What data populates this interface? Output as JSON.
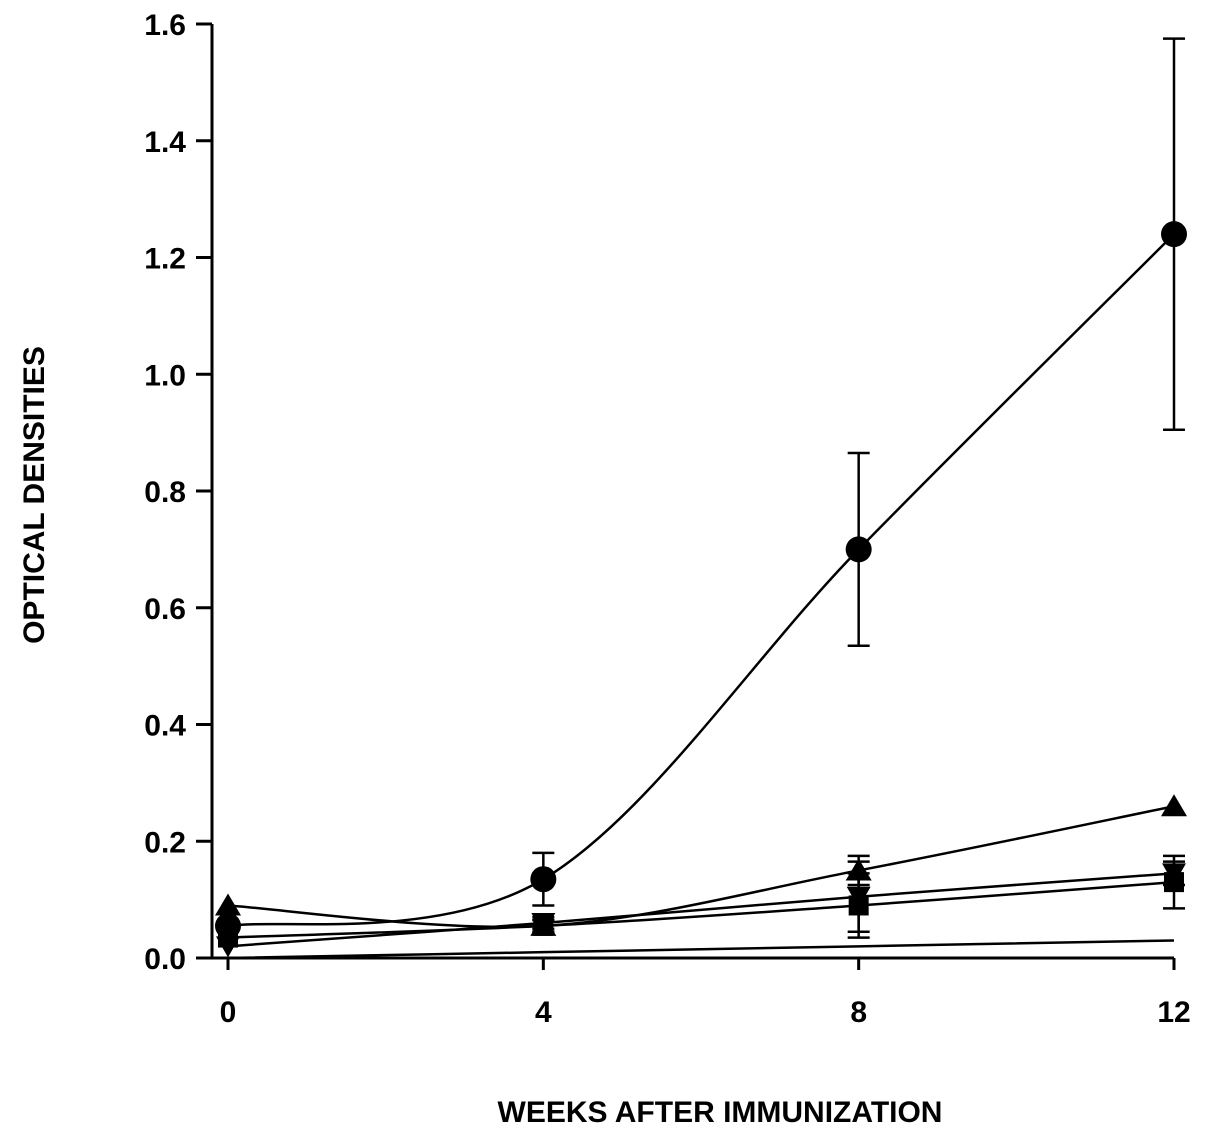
{
  "chart_data": {
    "type": "line",
    "title": "",
    "xlabel": "WEEKS AFTER IMMUNIZATION",
    "ylabel": "OPTICAL DENSITIES",
    "xlim": [
      0,
      12
    ],
    "ylim": [
      0,
      1.6
    ],
    "x_ticks": [
      "0",
      "4",
      "8",
      "12"
    ],
    "y_ticks": [
      "0.0",
      "0.2",
      "0.4",
      "0.6",
      "0.8",
      "1.0",
      "1.2",
      "1.4",
      "1.6"
    ],
    "x": [
      0,
      4,
      8,
      12
    ],
    "grid": false,
    "legend": "none",
    "series": [
      {
        "marker": "circle",
        "color": "#000000",
        "values": [
          0.055,
          0.135,
          0.7,
          1.24
        ],
        "errors": [
          0.01,
          0.045,
          0.165,
          0.335
        ]
      },
      {
        "marker": "triangle",
        "color": "#000000",
        "values": [
          0.09,
          0.055,
          0.15,
          0.26
        ],
        "errors": [
          0.0,
          0.01,
          0.025,
          0.0
        ]
      },
      {
        "marker": "square",
        "color": "#000000",
        "values": [
          0.035,
          0.055,
          0.09,
          0.13
        ],
        "errors": [
          0.0,
          0.01,
          0.055,
          0.045
        ]
      },
      {
        "marker": "inverted-triangle",
        "color": "#000000",
        "values": [
          0.02,
          0.06,
          0.105,
          0.145
        ],
        "errors": [
          0.0,
          0.01,
          0.06,
          0.02
        ]
      },
      {
        "marker": "none",
        "color": "#000000",
        "values": [
          0.0,
          0.01,
          0.02,
          0.03
        ],
        "errors": [
          0,
          0,
          0,
          0
        ]
      }
    ]
  }
}
